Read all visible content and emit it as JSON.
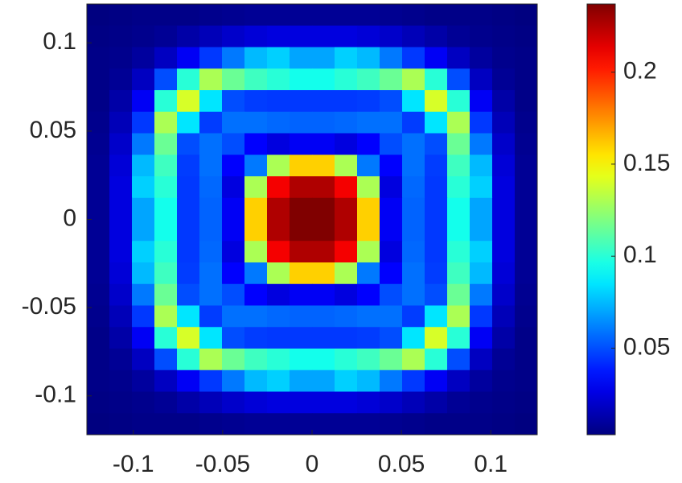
{
  "chart_data": {
    "type": "heatmap",
    "colormap": "jet",
    "xlim": [
      -0.126,
      0.126
    ],
    "ylim": [
      -0.122,
      0.122
    ],
    "xticks": [
      -0.1,
      -0.05,
      0,
      0.05,
      0.1
    ],
    "yticks": [
      -0.1,
      -0.05,
      0,
      0.05,
      0.1
    ],
    "clim": [
      0.003,
      0.237
    ],
    "cticks": [
      0.05,
      0.1,
      0.15,
      0.2
    ],
    "z": [
      [
        0.003,
        0.004,
        0.005,
        0.005,
        0.005,
        0.006,
        0.007,
        0.008,
        0.008,
        0.008,
        0.008,
        0.008,
        0.008,
        0.007,
        0.006,
        0.005,
        0.005,
        0.005,
        0.004,
        0.003
      ],
      [
        0.004,
        0.005,
        0.006,
        0.008,
        0.012,
        0.016,
        0.02,
        0.023,
        0.025,
        0.025,
        0.025,
        0.025,
        0.023,
        0.02,
        0.016,
        0.012,
        0.008,
        0.006,
        0.005,
        0.004
      ],
      [
        0.005,
        0.006,
        0.01,
        0.018,
        0.03,
        0.045,
        0.06,
        0.075,
        0.08,
        0.07,
        0.07,
        0.08,
        0.075,
        0.06,
        0.045,
        0.03,
        0.018,
        0.01,
        0.006,
        0.005
      ],
      [
        0.005,
        0.008,
        0.018,
        0.05,
        0.1,
        0.13,
        0.115,
        0.105,
        0.1,
        0.095,
        0.095,
        0.1,
        0.105,
        0.115,
        0.13,
        0.1,
        0.05,
        0.018,
        0.008,
        0.005
      ],
      [
        0.005,
        0.012,
        0.03,
        0.1,
        0.14,
        0.085,
        0.05,
        0.046,
        0.045,
        0.045,
        0.045,
        0.045,
        0.046,
        0.05,
        0.085,
        0.14,
        0.1,
        0.03,
        0.012,
        0.005
      ],
      [
        0.006,
        0.016,
        0.045,
        0.13,
        0.085,
        0.046,
        0.058,
        0.058,
        0.056,
        0.055,
        0.055,
        0.056,
        0.058,
        0.058,
        0.046,
        0.085,
        0.13,
        0.045,
        0.016,
        0.006
      ],
      [
        0.007,
        0.02,
        0.06,
        0.115,
        0.05,
        0.058,
        0.05,
        0.032,
        0.025,
        0.03,
        0.03,
        0.025,
        0.032,
        0.05,
        0.058,
        0.05,
        0.115,
        0.06,
        0.02,
        0.007
      ],
      [
        0.008,
        0.023,
        0.075,
        0.105,
        0.046,
        0.058,
        0.032,
        0.06,
        0.13,
        0.16,
        0.16,
        0.13,
        0.06,
        0.032,
        0.058,
        0.046,
        0.105,
        0.075,
        0.023,
        0.008
      ],
      [
        0.008,
        0.025,
        0.08,
        0.1,
        0.045,
        0.056,
        0.025,
        0.13,
        0.21,
        0.226,
        0.226,
        0.21,
        0.13,
        0.025,
        0.056,
        0.045,
        0.1,
        0.08,
        0.025,
        0.008
      ],
      [
        0.008,
        0.025,
        0.07,
        0.095,
        0.045,
        0.055,
        0.03,
        0.16,
        0.226,
        0.237,
        0.237,
        0.226,
        0.16,
        0.03,
        0.055,
        0.045,
        0.095,
        0.07,
        0.025,
        0.008
      ],
      [
        0.008,
        0.025,
        0.07,
        0.095,
        0.045,
        0.055,
        0.03,
        0.16,
        0.226,
        0.237,
        0.237,
        0.226,
        0.16,
        0.03,
        0.055,
        0.045,
        0.095,
        0.07,
        0.025,
        0.008
      ],
      [
        0.008,
        0.025,
        0.08,
        0.1,
        0.045,
        0.056,
        0.025,
        0.13,
        0.21,
        0.226,
        0.226,
        0.21,
        0.13,
        0.025,
        0.056,
        0.045,
        0.1,
        0.08,
        0.025,
        0.008
      ],
      [
        0.008,
        0.023,
        0.075,
        0.105,
        0.046,
        0.058,
        0.032,
        0.06,
        0.13,
        0.16,
        0.16,
        0.13,
        0.06,
        0.032,
        0.058,
        0.046,
        0.105,
        0.075,
        0.023,
        0.008
      ],
      [
        0.007,
        0.02,
        0.06,
        0.115,
        0.05,
        0.058,
        0.05,
        0.032,
        0.025,
        0.03,
        0.03,
        0.025,
        0.032,
        0.05,
        0.058,
        0.05,
        0.115,
        0.06,
        0.02,
        0.007
      ],
      [
        0.006,
        0.016,
        0.045,
        0.13,
        0.085,
        0.046,
        0.058,
        0.058,
        0.056,
        0.055,
        0.055,
        0.056,
        0.058,
        0.058,
        0.046,
        0.085,
        0.13,
        0.045,
        0.016,
        0.006
      ],
      [
        0.005,
        0.012,
        0.03,
        0.1,
        0.14,
        0.085,
        0.05,
        0.046,
        0.045,
        0.045,
        0.045,
        0.045,
        0.046,
        0.05,
        0.085,
        0.14,
        0.1,
        0.03,
        0.012,
        0.005
      ],
      [
        0.005,
        0.008,
        0.018,
        0.05,
        0.1,
        0.13,
        0.115,
        0.105,
        0.1,
        0.095,
        0.095,
        0.1,
        0.105,
        0.115,
        0.13,
        0.1,
        0.05,
        0.018,
        0.008,
        0.005
      ],
      [
        0.005,
        0.006,
        0.01,
        0.018,
        0.03,
        0.045,
        0.06,
        0.075,
        0.08,
        0.07,
        0.07,
        0.08,
        0.075,
        0.06,
        0.045,
        0.03,
        0.018,
        0.01,
        0.006,
        0.005
      ],
      [
        0.004,
        0.005,
        0.006,
        0.008,
        0.012,
        0.016,
        0.02,
        0.023,
        0.025,
        0.025,
        0.025,
        0.025,
        0.023,
        0.02,
        0.016,
        0.012,
        0.008,
        0.006,
        0.005,
        0.004
      ],
      [
        0.003,
        0.004,
        0.005,
        0.005,
        0.005,
        0.006,
        0.007,
        0.008,
        0.008,
        0.008,
        0.008,
        0.008,
        0.008,
        0.007,
        0.006,
        0.005,
        0.005,
        0.005,
        0.004,
        0.003
      ]
    ]
  }
}
